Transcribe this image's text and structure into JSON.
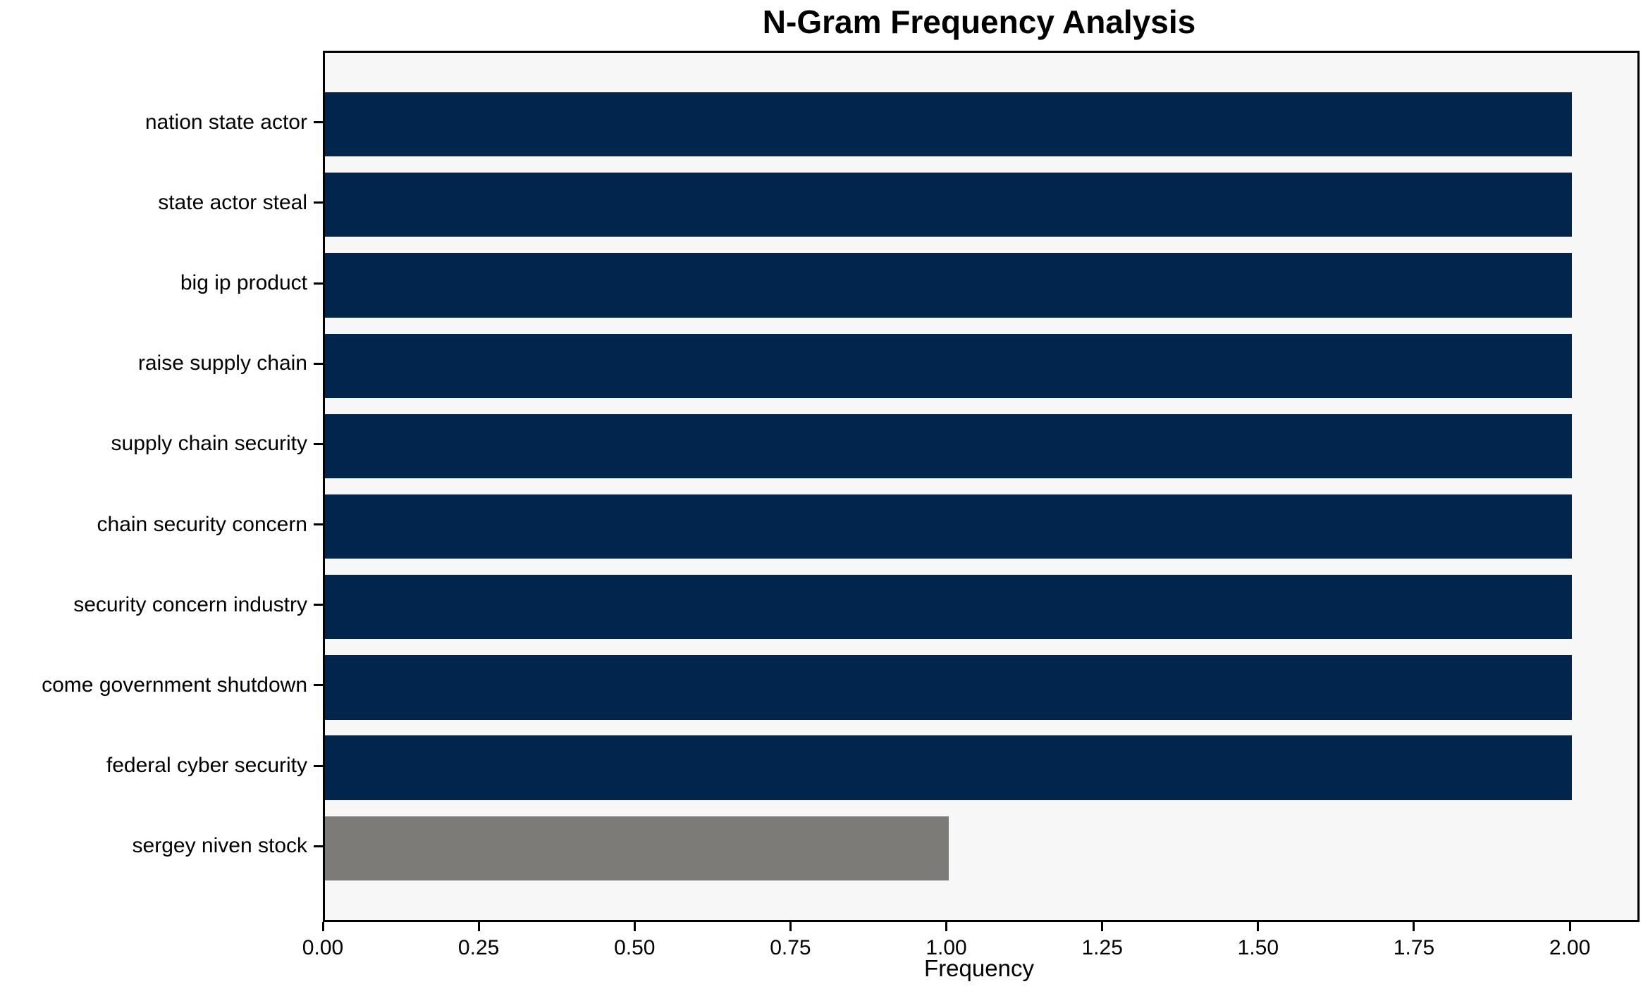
{
  "chart_data": {
    "type": "bar",
    "orientation": "horizontal",
    "title": "N-Gram Frequency Analysis",
    "xlabel": "Frequency",
    "ylabel": "",
    "categories": [
      "nation state actor",
      "state actor steal",
      "big ip product",
      "raise supply chain",
      "supply chain security",
      "chain security concern",
      "security concern industry",
      "come government shutdown",
      "federal cyber security",
      "sergey niven stock"
    ],
    "values": [
      2,
      2,
      2,
      2,
      2,
      2,
      2,
      2,
      2,
      1
    ],
    "bar_colors": [
      "#02254d",
      "#02254d",
      "#02254d",
      "#02254d",
      "#02254d",
      "#02254d",
      "#02254d",
      "#02254d",
      "#02254d",
      "#7c7b78"
    ],
    "x_tick_values": [
      0,
      0.25,
      0.5,
      0.75,
      1.0,
      1.25,
      1.5,
      1.75,
      2.0
    ],
    "x_tick_labels": [
      "0.00",
      "0.25",
      "0.50",
      "0.75",
      "1.00",
      "1.25",
      "1.50",
      "1.75",
      "2.00"
    ],
    "xlim": [
      0,
      2.105
    ],
    "grid": false,
    "legend_position": "none",
    "plot_background": "#f7f7f7",
    "figure_background": "#ffffff",
    "spine_color": "#000000",
    "bar_height_fraction": 0.8
  }
}
